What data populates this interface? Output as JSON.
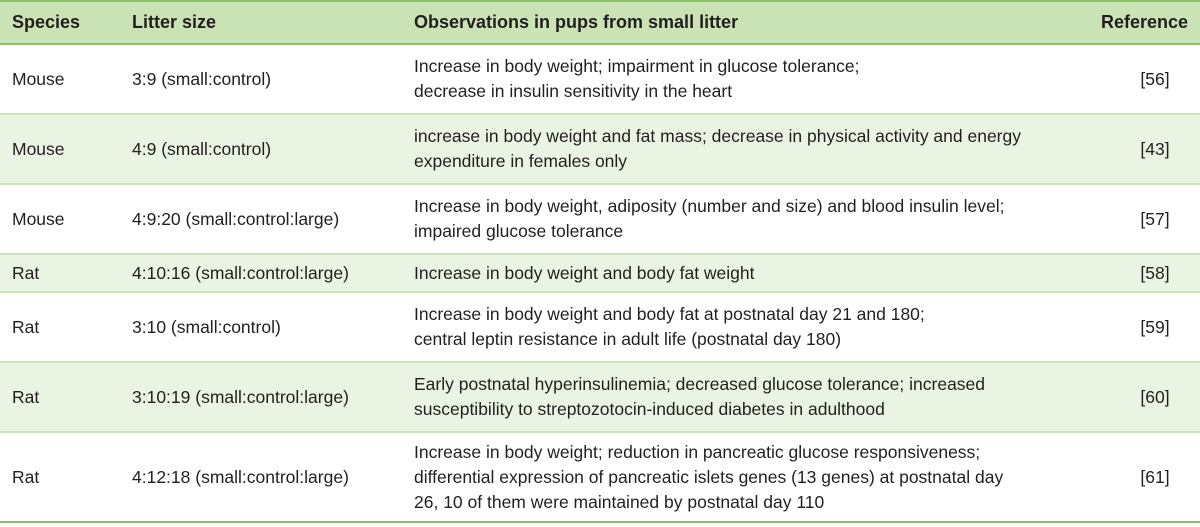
{
  "table": {
    "headers": {
      "species": "Species",
      "litter": "Litter size",
      "observations": "Observations in pups from small litter",
      "reference": "Reference"
    },
    "rows": [
      {
        "species": "Mouse",
        "litter": "3:9 (small:control)",
        "obs": [
          "Increase in body weight; impairment in glucose tolerance;",
          "decrease in insulin sensitivity in the heart"
        ],
        "reference": "[56]"
      },
      {
        "species": "Mouse",
        "litter": "4:9 (small:control)",
        "obs": [
          "increase in body weight and fat mass; decrease in physical activity and energy",
          "expenditure in females only"
        ],
        "reference": "[43]"
      },
      {
        "species": "Mouse",
        "litter": "4:9:20 (small:control:large)",
        "obs": [
          "Increase in body weight, adiposity (number and size) and blood insulin level;",
          "impaired glucose tolerance"
        ],
        "reference": "[57]"
      },
      {
        "species": "Rat",
        "litter": "4:10:16 (small:control:large)",
        "obs": [
          "Increase in body weight and body fat weight"
        ],
        "reference": "[58]"
      },
      {
        "species": "Rat",
        "litter": "3:10 (small:control)",
        "obs": [
          "Increase in body weight and body fat at postnatal day 21 and 180;",
          "central leptin resistance in adult life (postnatal day 180)"
        ],
        "reference": "[59]"
      },
      {
        "species": "Rat",
        "litter": "3:10:19 (small:control:large)",
        "obs": [
          "Early postnatal hyperinsulinemia; decreased glucose tolerance; increased",
          "susceptibility to streptozotocin-induced diabetes in adulthood"
        ],
        "reference": "[60]"
      },
      {
        "species": "Rat",
        "litter": "4:12:18 (small:control:large)",
        "obs": [
          "Increase in body weight; reduction in pancreatic glucose responsiveness;",
          "differential expression of pancreatic islets genes (13 genes) at postnatal day",
          "26, 10 of them were maintained by postnatal day 110"
        ],
        "reference": "[61]"
      }
    ]
  },
  "colors": {
    "header_bg": "#c9e3b5",
    "shaded_row_bg": "#eaf4e2",
    "rule": "#8cc063"
  }
}
